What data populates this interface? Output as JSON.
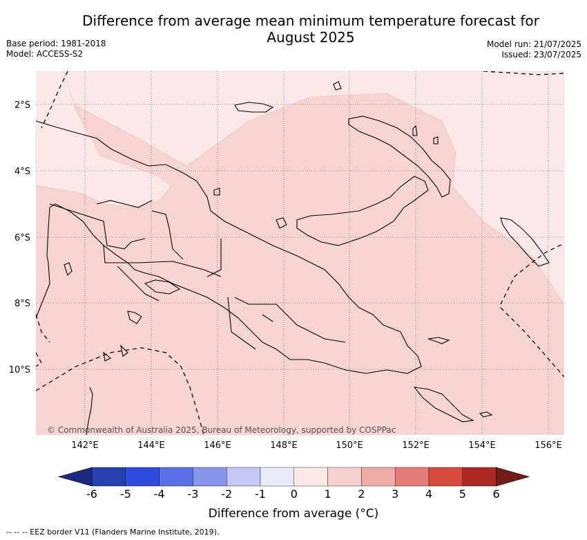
{
  "title": "Difference from average mean minimum temperature forecast for August 2025",
  "meta_left": [
    "Base period: 1981-2018",
    "Model: ACCESS-S2"
  ],
  "meta_right": [
    "Model run: 21/07/2025",
    "Issued: 23/07/2025"
  ],
  "map": {
    "lon_ticks": [
      "142°E",
      "144°E",
      "146°E",
      "148°E",
      "150°E",
      "152°E",
      "154°E",
      "156°E"
    ],
    "lat_ticks": [
      "2°S",
      "4°S",
      "6°S",
      "8°S",
      "10°S"
    ],
    "copyright": "© Commonwealth of Australia 2025, Bureau of Meteorology, supported by COSPPac",
    "fill_colors": {
      "0_to_1": "#fbe9e7",
      "1_to_2": "#f5d4d1"
    }
  },
  "colorbar": {
    "label": "Difference from average (°C)",
    "tick_labels": [
      "-6",
      "-5",
      "-4",
      "-3",
      "-2",
      "-1",
      "0",
      "1",
      "2",
      "3",
      "4",
      "5",
      "6"
    ],
    "colors": [
      "#1c2a82",
      "#2640b0",
      "#2e4de0",
      "#5a70e6",
      "#8796ea",
      "#c3c9f4",
      "#e8ebf9",
      "#fbe9e7",
      "#f5d0cd",
      "#efaba6",
      "#e57e76",
      "#d94a3e",
      "#ad2a22",
      "#741c19"
    ]
  },
  "footnote": "-- -- -- EEZ border V11 (Flanders Marine Institute, 2019)."
}
